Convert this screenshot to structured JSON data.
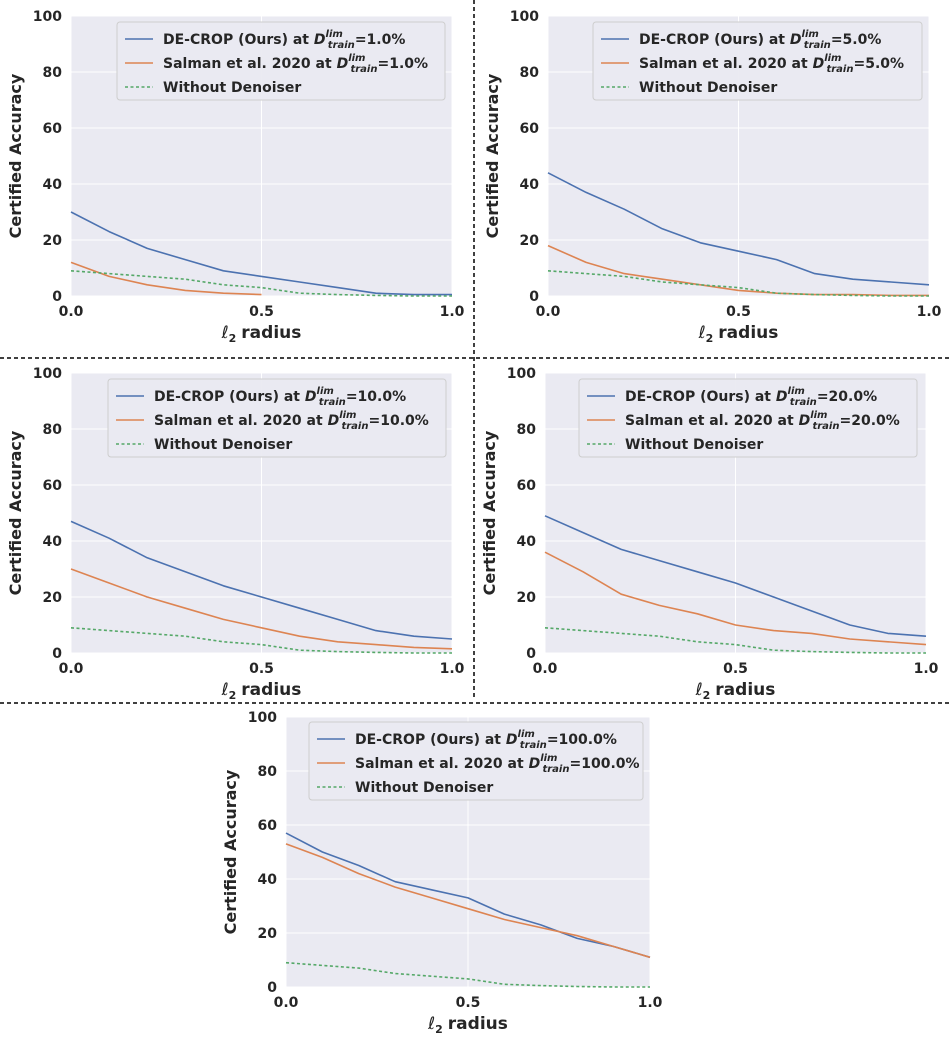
{
  "colors": {
    "panel_bg": "#EAEAF2",
    "grid": "#FFFFFF",
    "decrop": "#4C72B0",
    "salman": "#DD8452",
    "without": "#55A868",
    "divider": "#000000",
    "text": "#262626"
  },
  "figure_text": {
    "sym_D": "D",
    "sym_lim": "lim",
    "sym_train": "train",
    "sym_l": "ℓ",
    "sym_2": "2"
  },
  "chart_data": [
    {
      "type": "line",
      "panel": "top-left",
      "xlabel": "radius",
      "ylabel": "Certified Accuracy",
      "xlim": [
        0,
        1
      ],
      "ylim": [
        0,
        100
      ],
      "xticks": [
        "0.0",
        "0.5",
        "1.0"
      ],
      "yticks": [
        "0",
        "20",
        "40",
        "60",
        "80",
        "100"
      ],
      "legend": {
        "placement": "top-right",
        "entries": [
          {
            "prefix": "DE-CROP (Ours) at ",
            "suffix": "=1.0%"
          },
          {
            "prefix": "Salman et al. 2020 at ",
            "suffix": "=1.0%"
          },
          {
            "prefix": "Without Denoiser",
            "suffix": ""
          }
        ]
      },
      "x": [
        0.0,
        0.1,
        0.2,
        0.3,
        0.4,
        0.5,
        0.6,
        0.7,
        0.8,
        0.9,
        1.0
      ],
      "series": [
        {
          "name": "DE-CROP (Ours)",
          "style": "solid",
          "values": [
            30,
            23,
            17,
            13,
            9,
            7,
            5,
            3,
            1,
            0.5,
            0.5
          ]
        },
        {
          "name": "Salman et al. 2020",
          "style": "solid",
          "values": [
            12,
            7,
            4,
            2,
            1,
            0.5,
            null,
            null,
            null,
            null,
            null
          ]
        },
        {
          "name": "Without Denoiser",
          "style": "dashed",
          "values": [
            9,
            8,
            7,
            6,
            4,
            3,
            1,
            0.5,
            0.2,
            0,
            0
          ]
        }
      ]
    },
    {
      "type": "line",
      "panel": "top-right",
      "xlabel": "radius",
      "ylabel": "Certified Accuracy",
      "xlim": [
        0,
        1
      ],
      "ylim": [
        0,
        100
      ],
      "xticks": [
        "0.0",
        "0.5",
        "1.0"
      ],
      "yticks": [
        "0",
        "20",
        "40",
        "60",
        "80",
        "100"
      ],
      "legend": {
        "placement": "top-right",
        "entries": [
          {
            "prefix": "DE-CROP (Ours) at ",
            "suffix": "=5.0%"
          },
          {
            "prefix": "Salman et al. 2020 at ",
            "suffix": "=5.0%"
          },
          {
            "prefix": "Without Denoiser",
            "suffix": ""
          }
        ]
      },
      "x": [
        0.0,
        0.1,
        0.2,
        0.3,
        0.4,
        0.5,
        0.6,
        0.7,
        0.8,
        0.9,
        1.0
      ],
      "series": [
        {
          "name": "DE-CROP (Ours)",
          "style": "solid",
          "values": [
            44,
            37,
            31,
            24,
            19,
            16,
            13,
            8,
            6,
            5,
            4
          ]
        },
        {
          "name": "Salman et al. 2020",
          "style": "solid",
          "values": [
            18,
            12,
            8,
            6,
            4,
            2,
            1,
            0.5,
            0.5,
            0.2,
            0.2
          ]
        },
        {
          "name": "Without Denoiser",
          "style": "dashed",
          "values": [
            9,
            8,
            7,
            5,
            4,
            3,
            1,
            0.5,
            0.2,
            0,
            0
          ]
        }
      ]
    },
    {
      "type": "line",
      "panel": "middle-left",
      "xlabel": "radius",
      "ylabel": "Certified Accuracy",
      "xlim": [
        0,
        1
      ],
      "ylim": [
        0,
        100
      ],
      "xticks": [
        "0.0",
        "0.5",
        "1.0"
      ],
      "yticks": [
        "0",
        "20",
        "40",
        "60",
        "80",
        "100"
      ],
      "legend": {
        "placement": "top-right",
        "entries": [
          {
            "prefix": "DE-CROP (Ours) at ",
            "suffix": "=10.0%"
          },
          {
            "prefix": "Salman et al. 2020 at ",
            "suffix": "=10.0%"
          },
          {
            "prefix": "Without Denoiser",
            "suffix": ""
          }
        ]
      },
      "x": [
        0.0,
        0.1,
        0.2,
        0.3,
        0.4,
        0.5,
        0.6,
        0.7,
        0.8,
        0.9,
        1.0
      ],
      "series": [
        {
          "name": "DE-CROP (Ours)",
          "style": "solid",
          "values": [
            47,
            41,
            34,
            29,
            24,
            20,
            16,
            12,
            8,
            6,
            5
          ]
        },
        {
          "name": "Salman et al. 2020",
          "style": "solid",
          "values": [
            30,
            25,
            20,
            16,
            12,
            9,
            6,
            4,
            3,
            2,
            1.5
          ]
        },
        {
          "name": "Without Denoiser",
          "style": "dashed",
          "values": [
            9,
            8,
            7,
            6,
            4,
            3,
            1,
            0.5,
            0.2,
            0,
            0
          ]
        }
      ]
    },
    {
      "type": "line",
      "panel": "middle-right",
      "xlabel": "radius",
      "ylabel": "Certified Accuracy",
      "xlim": [
        0,
        1
      ],
      "ylim": [
        0,
        100
      ],
      "xticks": [
        "0.0",
        "0.5",
        "1.0"
      ],
      "yticks": [
        "0",
        "20",
        "40",
        "60",
        "80",
        "100"
      ],
      "legend": {
        "placement": "top-right",
        "entries": [
          {
            "prefix": "DE-CROP (Ours) at ",
            "suffix": "=20.0%"
          },
          {
            "prefix": "Salman et al. 2020 at ",
            "suffix": "=20.0%"
          },
          {
            "prefix": "Without Denoiser",
            "suffix": ""
          }
        ]
      },
      "x": [
        0.0,
        0.1,
        0.2,
        0.3,
        0.4,
        0.5,
        0.6,
        0.7,
        0.8,
        0.9,
        1.0
      ],
      "series": [
        {
          "name": "DE-CROP (Ours)",
          "style": "solid",
          "values": [
            49,
            43,
            37,
            33,
            29,
            25,
            20,
            15,
            10,
            7,
            6
          ]
        },
        {
          "name": "Salman et al. 2020",
          "style": "solid",
          "values": [
            36,
            29,
            21,
            17,
            14,
            10,
            8,
            7,
            5,
            4,
            3
          ]
        },
        {
          "name": "Without Denoiser",
          "style": "dashed",
          "values": [
            9,
            8,
            7,
            6,
            4,
            3,
            1,
            0.5,
            0.2,
            0,
            0
          ]
        }
      ]
    },
    {
      "type": "line",
      "panel": "bottom-center",
      "xlabel": "radius",
      "ylabel": "Certified Accuracy",
      "xlim": [
        0,
        1
      ],
      "ylim": [
        0,
        100
      ],
      "xticks": [
        "0.0",
        "0.5",
        "1.0"
      ],
      "yticks": [
        "0",
        "20",
        "40",
        "60",
        "80",
        "100"
      ],
      "legend": {
        "placement": "top-right",
        "entries": [
          {
            "prefix": "DE-CROP (Ours) at ",
            "suffix": "=100.0%"
          },
          {
            "prefix": "Salman et al. 2020 at ",
            "suffix": "=100.0%"
          },
          {
            "prefix": "Without Denoiser",
            "suffix": ""
          }
        ]
      },
      "x": [
        0.0,
        0.1,
        0.2,
        0.3,
        0.4,
        0.5,
        0.6,
        0.7,
        0.8,
        0.9,
        1.0
      ],
      "series": [
        {
          "name": "DE-CROP (Ours)",
          "style": "solid",
          "values": [
            57,
            50,
            45,
            39,
            36,
            33,
            27,
            23,
            18,
            15,
            11
          ]
        },
        {
          "name": "Salman et al. 2020",
          "style": "solid",
          "values": [
            53,
            48,
            42,
            37,
            33,
            29,
            25,
            22,
            19,
            15,
            11
          ]
        },
        {
          "name": "Without Denoiser",
          "style": "dashed",
          "values": [
            9,
            8,
            7,
            5,
            4,
            3,
            1,
            0.5,
            0.2,
            0,
            0
          ]
        }
      ]
    }
  ]
}
